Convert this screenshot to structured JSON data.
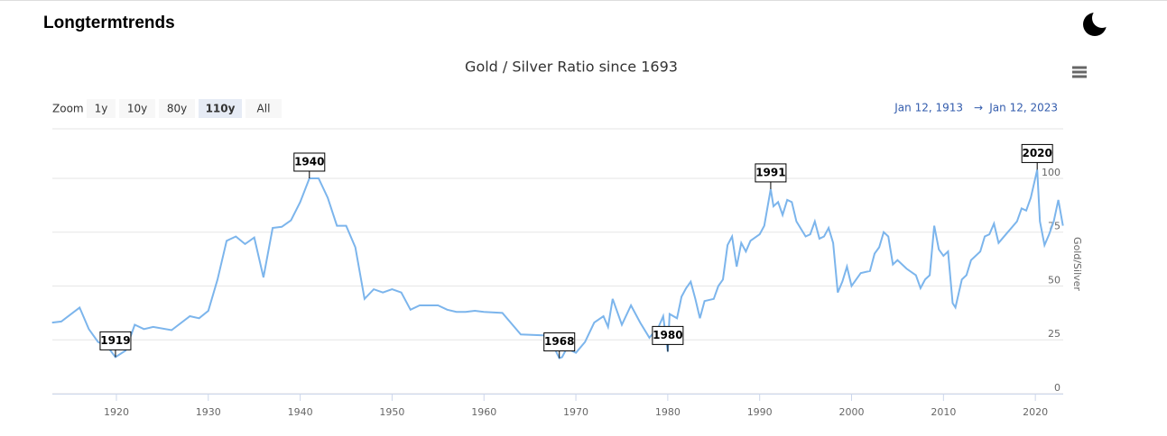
{
  "header": {
    "brand": "Longtermtrends"
  },
  "toolbar": {
    "zoom_label": "Zoom",
    "zoom_buttons": [
      "1y",
      "10y",
      "80y",
      "110y",
      "All"
    ],
    "selected": 3,
    "range_from": "Jan 12, 1913",
    "range_arrow": "→",
    "range_to": "Jan 12, 2023"
  },
  "chart_data": {
    "type": "line",
    "title": "Gold / Silver Ratio since 1693",
    "ylabel": "Gold/Silver",
    "color": "#7cb5ec",
    "x": [
      1913,
      1914,
      1916,
      1917,
      1918,
      1919,
      1919.9,
      1921,
      1922,
      1923,
      1924,
      1926,
      1928,
      1929,
      1930,
      1931,
      1932,
      1933,
      1934,
      1935,
      1936,
      1937,
      1938,
      1939,
      1940,
      1941,
      1942,
      1943,
      1944,
      1945,
      1946,
      1947,
      1948,
      1949,
      1950,
      1951,
      1952,
      1953,
      1955,
      1956,
      1957,
      1958,
      1959,
      1960,
      1962,
      1964,
      1967,
      1968.2,
      1968.5,
      1969,
      1970,
      1971,
      1972,
      1973,
      1973.5,
      1974,
      1975,
      1976,
      1977,
      1978,
      1979,
      1979.5,
      1980,
      1980.2,
      1981,
      1981.5,
      1982,
      1982.5,
      1983,
      1983.5,
      1984,
      1985,
      1985.5,
      1986,
      1986.5,
      1987,
      1987.5,
      1988,
      1988.5,
      1989,
      1990,
      1990.5,
      1991.2,
      1991.5,
      1992,
      1992.5,
      1993,
      1993.5,
      1994,
      1995,
      1995.5,
      1996,
      1996.5,
      1997,
      1997.5,
      1998,
      1998.5,
      1999,
      1999.5,
      2000,
      2001,
      2002,
      2002.5,
      2003,
      2003.5,
      2004,
      2004.5,
      2005,
      2006,
      2007,
      2007.5,
      2008,
      2008.5,
      2009,
      2009.5,
      2010,
      2010.5,
      2011,
      2011.3,
      2012,
      2012.5,
      2013,
      2014,
      2014.5,
      2015,
      2015.5,
      2016,
      2017,
      2018,
      2018.5,
      2019,
      2019.5,
      2020.2,
      2020.5,
      2021,
      2021.5,
      2022,
      2022.5,
      2023
    ],
    "values": [
      33,
      33.5,
      40,
      30,
      24,
      22,
      17,
      20,
      32,
      30,
      31,
      29.5,
      36,
      35,
      38.5,
      53,
      71,
      73,
      69.5,
      72.5,
      54,
      77,
      77.5,
      80.5,
      89,
      100,
      100,
      91,
      78,
      78,
      68,
      44,
      48.5,
      47,
      48.5,
      47,
      39,
      41,
      41,
      39,
      38,
      38,
      38.5,
      38,
      37.5,
      27.5,
      27,
      16.5,
      17,
      21,
      19,
      24,
      33,
      36,
      31,
      44,
      32,
      41,
      33,
      26,
      31,
      36,
      19.5,
      37,
      35,
      45,
      49,
      52,
      44,
      35,
      43,
      44,
      50,
      53,
      69,
      73,
      59,
      70,
      66,
      71,
      74,
      78,
      95,
      87,
      89,
      83,
      90,
      89,
      80,
      73,
      74,
      80,
      72,
      73,
      77,
      70,
      47,
      52,
      59,
      50,
      56,
      57,
      65,
      68,
      75,
      73,
      60,
      62,
      58,
      55,
      49,
      53,
      55,
      78,
      67,
      64,
      66,
      42,
      40,
      53,
      55,
      62,
      66,
      73,
      74,
      79,
      70,
      75,
      80,
      86,
      85,
      91,
      104,
      80,
      69,
      74,
      80,
      90,
      78
    ],
    "annotations": [
      {
        "label": "1919",
        "x": 1919.9,
        "y": 17
      },
      {
        "label": "1940",
        "x": 1941,
        "y": 100
      },
      {
        "label": "1968",
        "x": 1968.2,
        "y": 16.5
      },
      {
        "label": "1980",
        "x": 1980,
        "y": 19.5
      },
      {
        "label": "1991",
        "x": 1991.2,
        "y": 95
      },
      {
        "label": "2020",
        "x": 2020.2,
        "y": 104
      }
    ],
    "xlim": [
      1913.03,
      2023.03
    ],
    "ylim": [
      0,
      123
    ],
    "xticks": [
      1920,
      1930,
      1940,
      1950,
      1960,
      1970,
      1980,
      1990,
      2000,
      2010,
      2020
    ],
    "yticks": [
      0,
      25,
      50,
      75,
      100
    ],
    "grid": true
  }
}
